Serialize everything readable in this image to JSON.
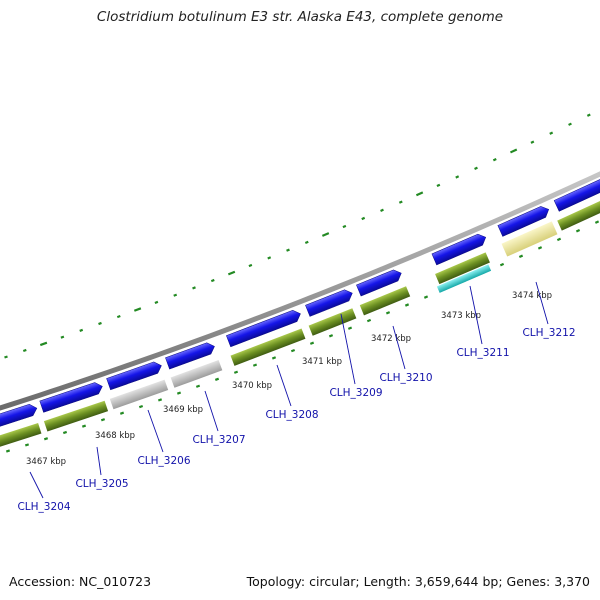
{
  "title": "Clostridium botulinum E3 str. Alaska E43, complete genome",
  "accession": "Accession: NC_010723",
  "summary": "Topology: circular; Length: 3,659,644 bp; Genes: 3,370",
  "kbp_labels": [
    "3467 kbp",
    "3468 kbp",
    "3469 kbp",
    "3470 kbp",
    "3471 kbp",
    "3472 kbp",
    "3473 kbp",
    "3474 kbp"
  ],
  "gene_labels": [
    "CLH_3204",
    "CLH_3205",
    "CLH_3206",
    "CLH_3207",
    "CLH_3208",
    "CLH_3209",
    "CLH_3210",
    "CLH_3211",
    "CLH_3212"
  ],
  "colors": {
    "forward_cds": "#1515e8",
    "gene_track": "#5b7f1c",
    "gene_track_light": "#9dbb3a",
    "pseudo_grey": "#b5b5b5",
    "rna_cyan": "#2ad0d0",
    "yellow_feature": "#ece69a",
    "backbone_grey": "#8a8a8a",
    "tick_green": "#238a23",
    "label_blue": "#1212aa"
  }
}
